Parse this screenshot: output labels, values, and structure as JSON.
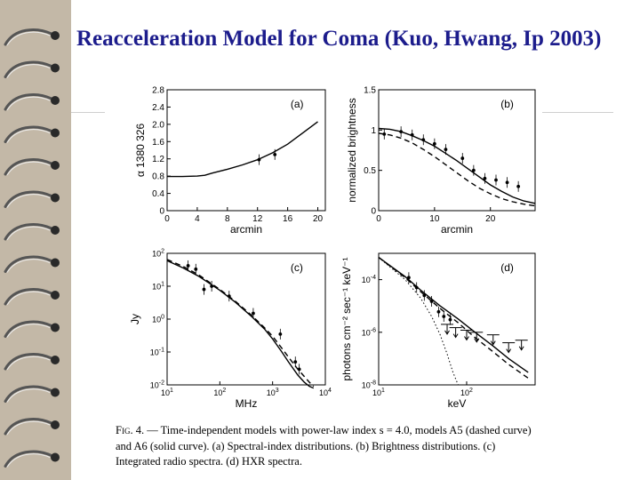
{
  "slide": {
    "title": "Reacceleration Model for Coma (Kuo, Hwang, Ip 2003)"
  },
  "caption": {
    "fig_label": "Fig. 4.",
    "text": "— Time-independent models with power-law index s = 4.0, models A5 (dashed curve) and A6 (solid curve). (a) Spectral-index distributions. (b) Brightness distributions. (c) Integrated radio spectra. (d) HXR spectra."
  },
  "chart_data": [
    {
      "panel": "(a)",
      "type": "line",
      "xlabel": "arcmin",
      "ylabel": "α 1380 326",
      "xlim": [
        0,
        21
      ],
      "ylim": [
        0,
        2.8
      ],
      "xticks": [
        "0",
        "4",
        "8",
        "12",
        "16",
        "20"
      ],
      "yticks": [
        "0",
        "0.4",
        "0.8",
        "1.2",
        "1.6",
        "2.0",
        "2.4",
        "2.8"
      ],
      "series": [
        {
          "name": "model",
          "style": "solid",
          "x": [
            0,
            2,
            4,
            5,
            6,
            8,
            10,
            12,
            14,
            16,
            18,
            20
          ],
          "y": [
            0.79,
            0.79,
            0.8,
            0.82,
            0.87,
            0.96,
            1.06,
            1.18,
            1.34,
            1.54,
            1.8,
            2.06
          ]
        },
        {
          "name": "data",
          "style": "points",
          "x": [
            12.2,
            14.3
          ],
          "y": [
            1.18,
            1.3
          ]
        }
      ]
    },
    {
      "panel": "(b)",
      "type": "line",
      "xlabel": "arcmin",
      "ylabel": "normalized brightness",
      "xlim": [
        0,
        28
      ],
      "ylim": [
        0,
        1.5
      ],
      "xticks": [
        "0",
        "10",
        "20"
      ],
      "yticks": [
        "0",
        "0.5",
        "1",
        "1.5"
      ],
      "series": [
        {
          "name": "A6",
          "style": "solid",
          "x": [
            0,
            2,
            4,
            6,
            8,
            10,
            12,
            14,
            16,
            18,
            20,
            22,
            24,
            26,
            28
          ],
          "y": [
            1.02,
            1.01,
            0.98,
            0.93,
            0.87,
            0.8,
            0.71,
            0.62,
            0.52,
            0.42,
            0.32,
            0.24,
            0.17,
            0.12,
            0.09
          ]
        },
        {
          "name": "A5",
          "style": "dashed",
          "x": [
            0,
            2,
            4,
            6,
            8,
            10,
            12,
            14,
            16,
            18,
            20,
            22,
            24,
            26,
            28
          ],
          "y": [
            0.96,
            0.94,
            0.9,
            0.84,
            0.76,
            0.67,
            0.57,
            0.47,
            0.37,
            0.28,
            0.21,
            0.15,
            0.11,
            0.08,
            0.06
          ]
        },
        {
          "name": "data",
          "style": "points",
          "x": [
            1,
            4,
            6,
            8,
            10,
            12,
            15,
            17,
            19,
            21,
            23,
            25
          ],
          "y": [
            0.95,
            0.98,
            0.94,
            0.88,
            0.83,
            0.76,
            0.65,
            0.5,
            0.4,
            0.38,
            0.35,
            0.3
          ]
        }
      ]
    },
    {
      "panel": "(c)",
      "type": "line",
      "xlabel": "MHz",
      "ylabel": "Jy",
      "xscale": "log",
      "yscale": "log",
      "xlim": [
        10,
        10000
      ],
      "ylim": [
        0.01,
        100
      ],
      "xticks": [
        "10^1",
        "10^2",
        "10^3",
        "10^4"
      ],
      "yticks": [
        "10^2",
        "10^1",
        "10^0",
        "10^-1",
        "10^-2"
      ],
      "series": [
        {
          "name": "A6",
          "style": "solid",
          "x": [
            10,
            20,
            40,
            60,
            100,
            200,
            400,
            700,
            1000,
            1500,
            2000,
            3000,
            4000,
            5000,
            6000
          ],
          "y": [
            60,
            36,
            20,
            13,
            7.5,
            3.2,
            1.2,
            0.5,
            0.25,
            0.1,
            0.05,
            0.02,
            0.012,
            0.009,
            0.008
          ]
        },
        {
          "name": "A5",
          "style": "dashed",
          "x": [
            10,
            20,
            40,
            60,
            100,
            200,
            400,
            700,
            1000,
            1500,
            2000,
            3000,
            4000,
            5000,
            6000
          ],
          "y": [
            65,
            40,
            22,
            14,
            8,
            3.4,
            1.3,
            0.55,
            0.3,
            0.13,
            0.07,
            0.03,
            0.018,
            0.012,
            0.009
          ]
        },
        {
          "name": "data",
          "style": "points",
          "x": [
            25,
            35,
            50,
            70,
            150,
            430,
            1400,
            2700,
            3200
          ],
          "y": [
            42,
            33,
            8,
            10,
            5,
            1.5,
            0.35,
            0.05,
            0.03
          ]
        }
      ]
    },
    {
      "panel": "(d)",
      "type": "line",
      "xlabel": "keV",
      "ylabel": "photons cm⁻² sec⁻¹ keV⁻¹",
      "xscale": "log",
      "yscale": "log",
      "xlim": [
        10,
        600
      ],
      "ylim": [
        1e-08,
        0.001
      ],
      "xticks": [
        "10^1",
        "10^2"
      ],
      "yticks": [
        "10^-4",
        "10^-6",
        "10^-8"
      ],
      "series": [
        {
          "name": "A6",
          "style": "solid",
          "x": [
            10,
            20,
            30,
            50,
            80,
            120,
            200,
            300,
            500
          ],
          "y": [
            0.0007,
            0.00013,
            4e-05,
            1e-05,
            3.2e-06,
            1.1e-06,
            3e-07,
            1e-07,
            3e-08
          ]
        },
        {
          "name": "A5",
          "style": "dashed",
          "x": [
            10,
            20,
            30,
            50,
            80,
            120,
            200,
            300,
            500
          ],
          "y": [
            0.0007,
            0.00012,
            3.5e-05,
            8e-06,
            2.3e-06,
            7e-07,
            1.8e-07,
            6e-08,
            1.8e-08
          ]
        },
        {
          "name": "thermal",
          "style": "dotted",
          "x": [
            10,
            20,
            30,
            40,
            50,
            60,
            70,
            80
          ],
          "y": [
            0.0007,
            0.0001,
            2e-05,
            4e-06,
            8e-07,
            1.5e-07,
            3e-08,
            1e-08
          ]
        },
        {
          "name": "data",
          "style": "points",
          "x": [
            22,
            27,
            33,
            40,
            48,
            55,
            65
          ],
          "y": [
            0.00012,
            5e-05,
            2.5e-05,
            1.5e-05,
            6e-06,
            4e-06,
            3e-06
          ]
        },
        {
          "name": "upper-limits",
          "style": "arrows",
          "x": [
            60,
            75,
            100,
            130,
            200,
            300,
            420
          ],
          "y": [
            2e-06,
            1.5e-06,
            1.2e-06,
            1e-06,
            8e-07,
            4e-07,
            5e-07
          ]
        }
      ]
    }
  ]
}
